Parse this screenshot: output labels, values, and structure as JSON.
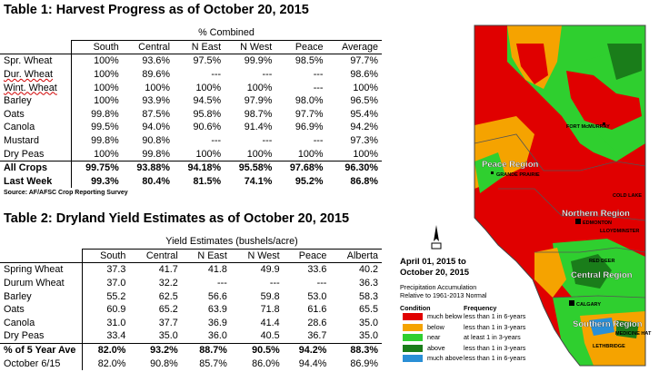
{
  "table1": {
    "title": "Table 1: Harvest Progress as of October 20, 2015",
    "group_header": "% Combined",
    "columns": [
      "South",
      "Central",
      "N East",
      "N West",
      "Peace",
      "Average"
    ],
    "rows": [
      {
        "label": "Spr. Wheat",
        "values": [
          "100%",
          "93.6%",
          "97.5%",
          "99.9%",
          "98.5%",
          "97.7%"
        ]
      },
      {
        "label": "Dur. Wheat",
        "values": [
          "100%",
          "89.6%",
          "---",
          "---",
          "---",
          "98.6%"
        ]
      },
      {
        "label": "Wint. Wheat",
        "values": [
          "100%",
          "100%",
          "100%",
          "100%",
          "---",
          "100%"
        ]
      },
      {
        "label": "Barley",
        "values": [
          "100%",
          "93.9%",
          "94.5%",
          "97.9%",
          "98.0%",
          "96.5%"
        ]
      },
      {
        "label": "Oats",
        "values": [
          "99.8%",
          "87.5%",
          "95.8%",
          "98.7%",
          "97.7%",
          "95.4%"
        ]
      },
      {
        "label": "Canola",
        "values": [
          "99.5%",
          "94.0%",
          "90.6%",
          "91.4%",
          "96.9%",
          "94.2%"
        ]
      },
      {
        "label": "Mustard",
        "values": [
          "99.8%",
          "90.8%",
          "---",
          "---",
          "---",
          "97.3%"
        ]
      },
      {
        "label": "Dry Peas",
        "values": [
          "100%",
          "99.8%",
          "100%",
          "100%",
          "100%",
          "100%"
        ]
      },
      {
        "label": "All Crops",
        "values": [
          "99.75%",
          "93.88%",
          "94.18%",
          "95.58%",
          "97.68%",
          "96.30%"
        ]
      },
      {
        "label": "Last Week",
        "values": [
          "99.3%",
          "80.4%",
          "81.5%",
          "74.1%",
          "95.2%",
          "86.8%"
        ]
      }
    ],
    "source": "Source: AF/AFSC Crop Reporting Survey"
  },
  "table2": {
    "title": "Table 2: Dryland Yield Estimates as of October 20, 2015",
    "group_header": "Yield Estimates (bushels/acre)",
    "columns": [
      "South",
      "Central",
      "N East",
      "N West",
      "Peace",
      "Alberta"
    ],
    "rows": [
      {
        "label": "Spring Wheat",
        "values": [
          "37.3",
          "41.7",
          "41.8",
          "49.9",
          "33.6",
          "40.2"
        ]
      },
      {
        "label": "Durum Wheat",
        "values": [
          "37.0",
          "32.2",
          "---",
          "---",
          "---",
          "36.3"
        ]
      },
      {
        "label": "Barley",
        "values": [
          "55.2",
          "62.5",
          "56.6",
          "59.8",
          "53.0",
          "58.3"
        ]
      },
      {
        "label": "Oats",
        "values": [
          "60.9",
          "65.2",
          "63.9",
          "71.8",
          "61.6",
          "65.5"
        ]
      },
      {
        "label": "Canola",
        "values": [
          "31.0",
          "37.7",
          "36.9",
          "41.4",
          "28.6",
          "35.0"
        ]
      },
      {
        "label": "Dry Peas",
        "values": [
          "33.4",
          "35.0",
          "36.0",
          "40.5",
          "36.7",
          "35.0"
        ]
      },
      {
        "label": "% of 5 Year Ave",
        "values": [
          "82.0%",
          "93.2%",
          "88.7%",
          "90.5%",
          "94.2%",
          "88.3%"
        ]
      },
      {
        "label": "October 6/15",
        "values": [
          "82.0%",
          "90.8%",
          "85.7%",
          "86.0%",
          "94.4%",
          "86.9%"
        ]
      }
    ]
  },
  "map": {
    "title_line1": "April 01, 2015 to",
    "title_line2": "October 20, 2015",
    "subtitle_line1": "Precipitation Accumulation",
    "subtitle_line2": "Relative to 1961-2013 Normal",
    "legend_condition_header": "Condition",
    "legend_frequency_header": "Frequency",
    "legend": [
      {
        "color": "#e00000",
        "condition": "much below",
        "frequency": "less than 1 in 6-years"
      },
      {
        "color": "#f5a300",
        "condition": "below",
        "frequency": "less than 1 in 3-years"
      },
      {
        "color": "#2fcf2f",
        "condition": "near",
        "frequency": "at least 1 in 3-years"
      },
      {
        "color": "#1a7d1a",
        "condition": "above",
        "frequency": "less than 1 in 3-years"
      },
      {
        "color": "#2a8fd6",
        "condition": "much above",
        "frequency": "less than 1 in 6-years"
      }
    ],
    "regions": [
      "Peace Region",
      "Northern Region",
      "Central Region",
      "Southern Region"
    ],
    "cities": [
      "FORT McMURRAY",
      "GRANDE PRAIRIE",
      "COLD LAKE",
      "EDMONTON",
      "LLOYDMINSTER",
      "RED DEER",
      "CALGARY",
      "MEDICINE HAT",
      "LETHBRIDGE"
    ]
  }
}
